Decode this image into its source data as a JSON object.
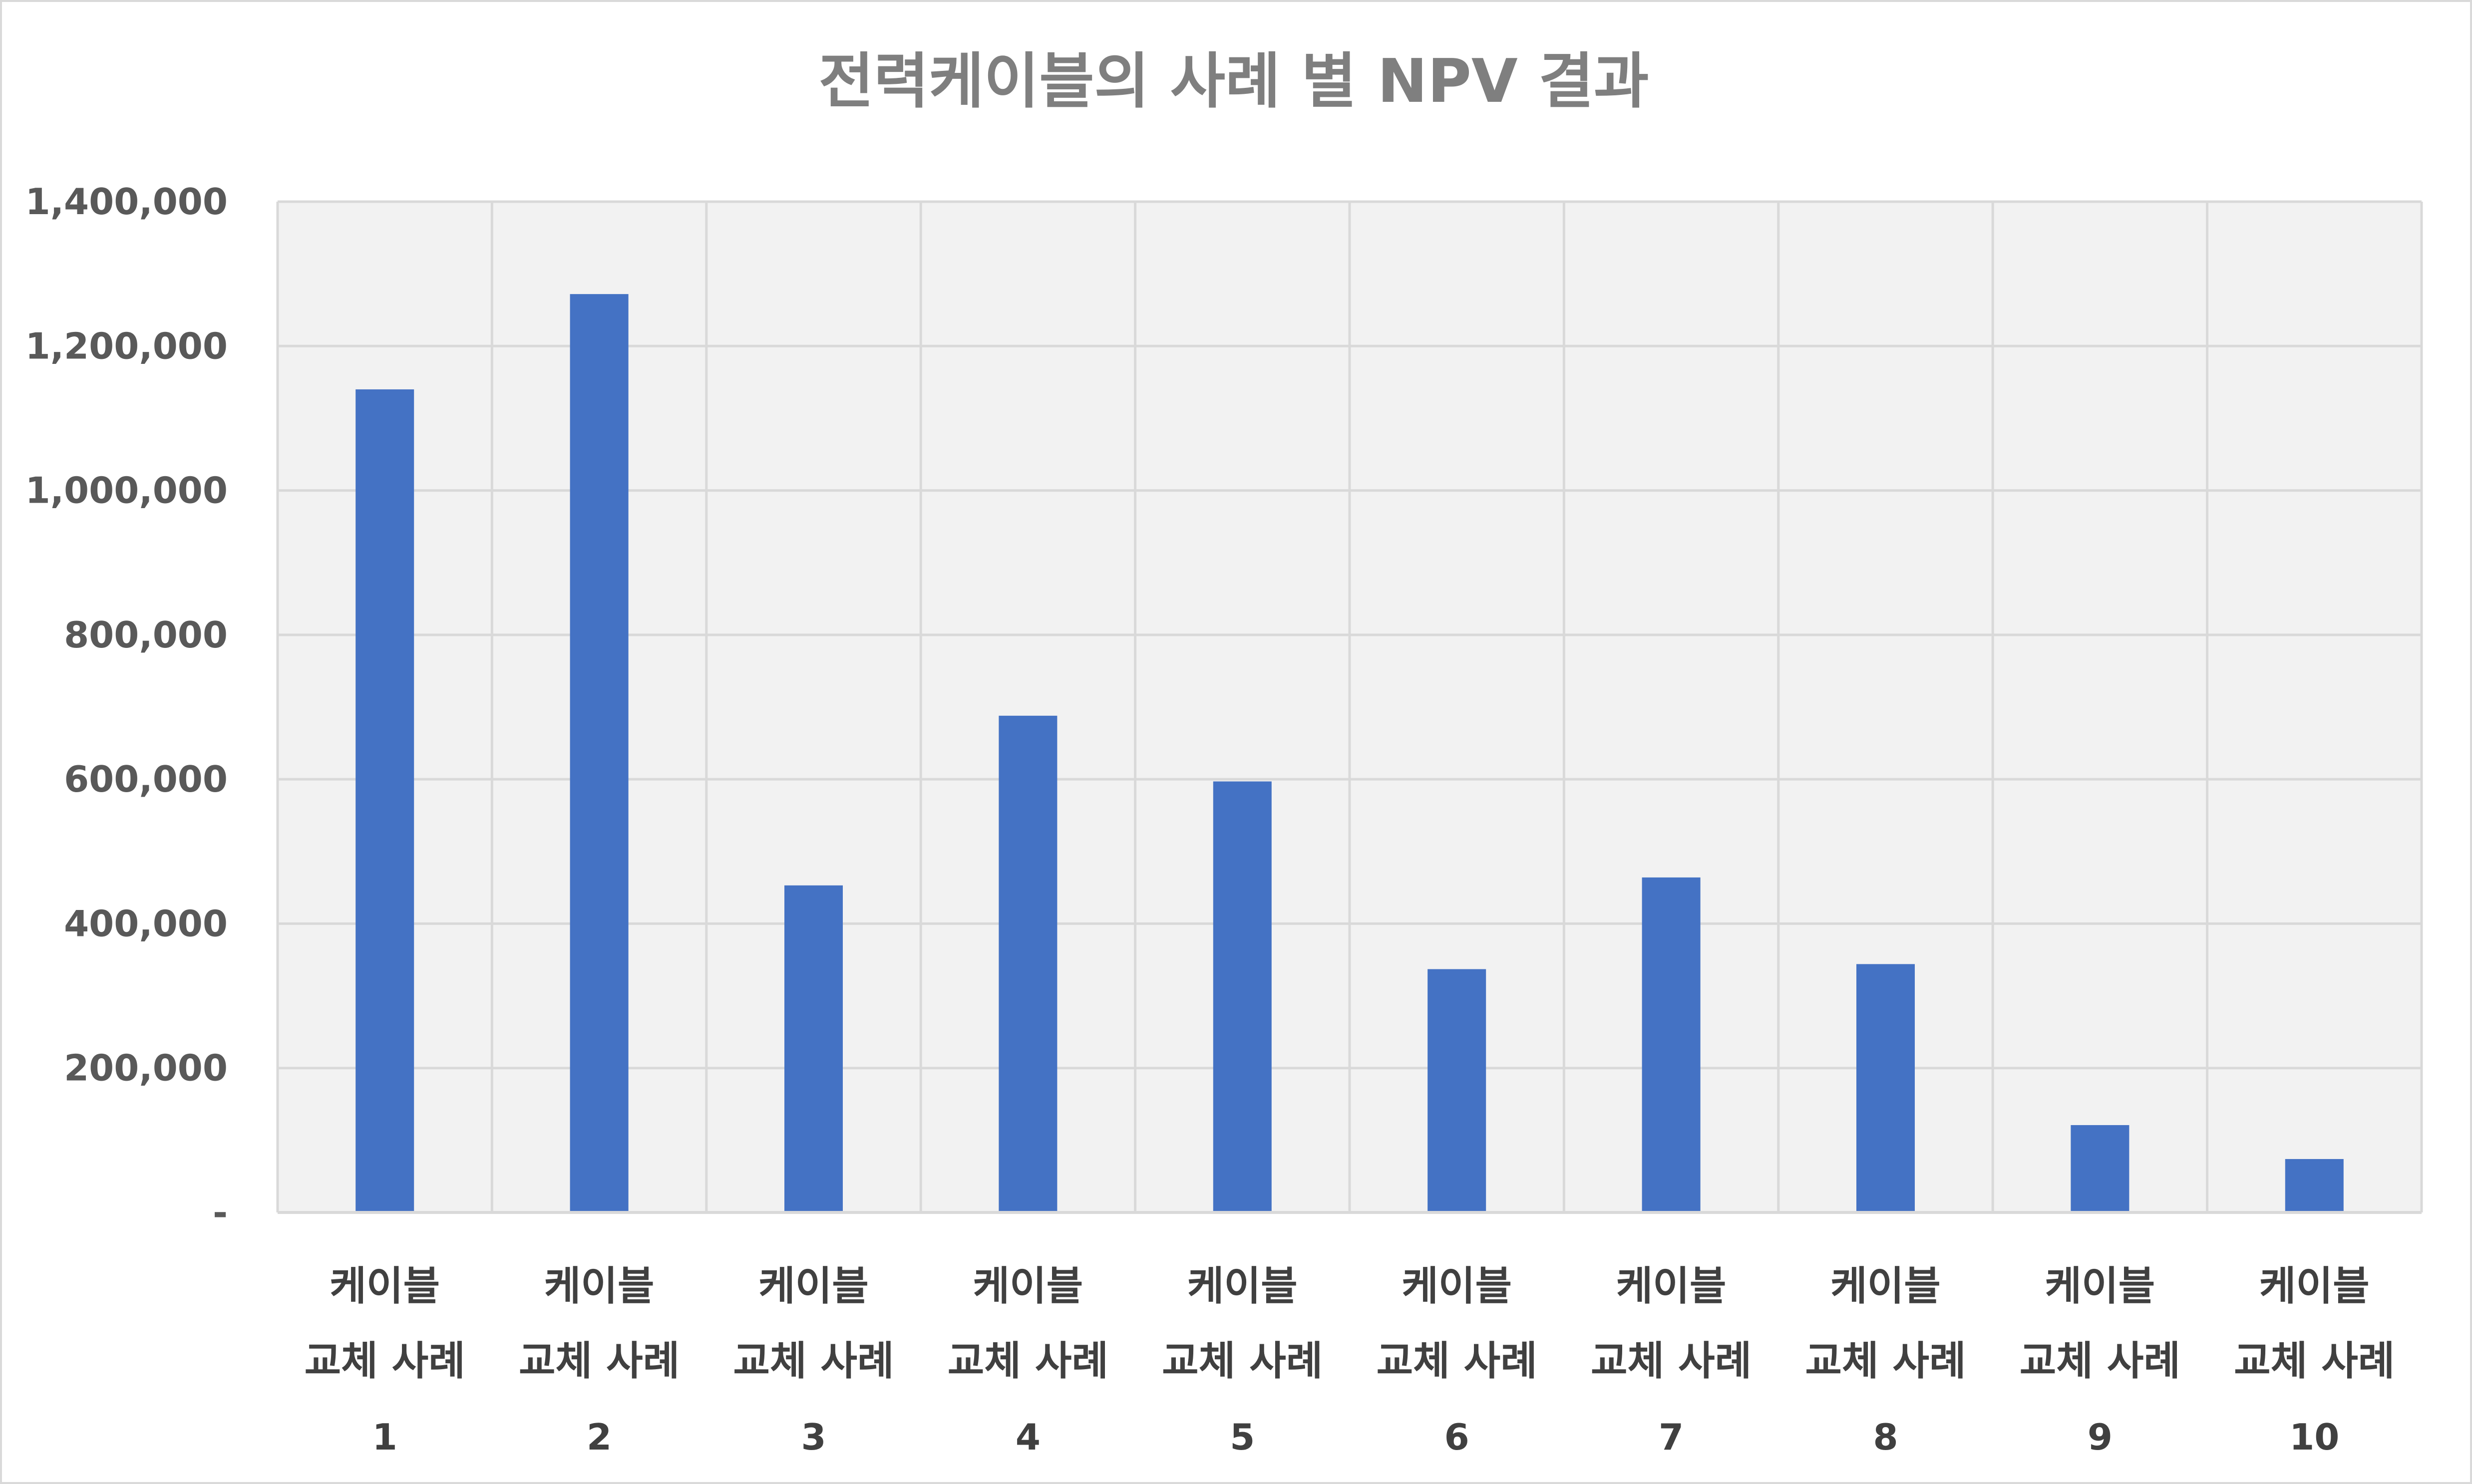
{
  "chart_data": {
    "type": "bar",
    "title": "전력케이블의 사례 별 NPV 결과",
    "xlabel": "",
    "ylabel": "",
    "categories": [
      [
        "케이블",
        "교체 사례",
        "1"
      ],
      [
        "케이블",
        "교체 사례",
        "2"
      ],
      [
        "케이블",
        "교체 사례",
        "3"
      ],
      [
        "케이블",
        "교체 사례",
        "4"
      ],
      [
        "케이블",
        "교체 사례",
        "5"
      ],
      [
        "케이블",
        "교체 사례",
        "6"
      ],
      [
        "케이블",
        "교체 사례",
        "7"
      ],
      [
        "케이블",
        "교체 사례",
        "8"
      ],
      [
        "케이블",
        "교체 사례",
        "9"
      ],
      [
        "케이블",
        "교체 사례",
        "10"
      ]
    ],
    "values": [
      1140000,
      1272000,
      453000,
      688000,
      597000,
      337000,
      464000,
      344000,
      121000,
      74000
    ],
    "ylim": [
      0,
      1400000
    ],
    "yticks": [
      0,
      200000,
      400000,
      600000,
      800000,
      1000000,
      1200000,
      1400000
    ],
    "ytick_labels": [
      "-",
      "200,000",
      "400,000",
      "600,000",
      "800,000",
      "1,000,000",
      "1,200,000",
      "1,400,000"
    ],
    "grid": true,
    "legend": "none",
    "colors": {
      "bar": "#4472c4",
      "plot_background": "#f2f2f2",
      "gridline": "#d9d9d9",
      "title": "#7f7f7f",
      "tick_label": "#595959",
      "category_label": "#404040"
    }
  }
}
